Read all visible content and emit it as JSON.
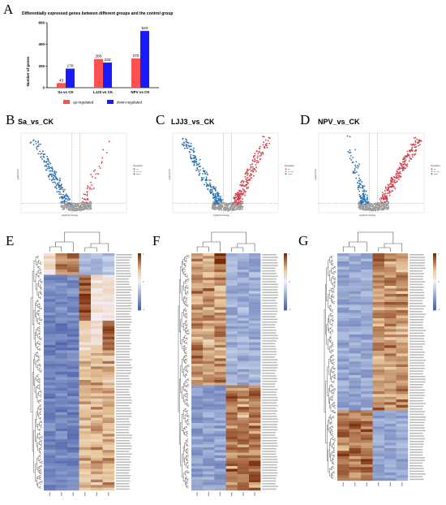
{
  "panels": {
    "A": "A",
    "B": "B",
    "C": "C",
    "D": "D",
    "E": "E",
    "F": "F",
    "G": "G"
  },
  "colors": {
    "up": "#ff5050",
    "down": "#1a1aff",
    "volcano_up": "#d0404a",
    "volcano_down": "#2a6fb0",
    "volcano_ns": "#9a9a9a",
    "heat_high": "#7a2a08",
    "heat_mid_high": "#e8c8a0",
    "heat_mid": "#f5eef5",
    "heat_low": "#4a60a8",
    "tree": "#555555",
    "pink_cell": "#f7d0e8"
  },
  "chart_data": [
    {
      "type": "bar",
      "title": "Differentially expressed  genes between different groups and the control group",
      "ylabel": "Number of genes",
      "ylim": [
        0,
        600
      ],
      "yticks": [
        "0",
        "200",
        "400",
        "600"
      ],
      "categories": [
        "Sa vs CK",
        "LJJ3 vs CK",
        "NPV vs CK"
      ],
      "series": [
        {
          "name": "up-regulated",
          "values": [
            43,
            265,
            270
          ]
        },
        {
          "name": "down-regulated",
          "values": [
            176,
            232,
            524
          ]
        }
      ],
      "value_labels": {
        "up-regulated": [
          "43",
          "265",
          "270"
        ],
        "down-regulated": [
          "176",
          "232",
          "524"
        ]
      },
      "legend": "bottom"
    },
    {
      "type": "scatter",
      "title": "Sa_vs_CK",
      "xlabel": "log2(Fold change)",
      "ylabel": "-log10(FDR)",
      "legend_title": "Regulation",
      "legend_items": [
        "up",
        "no_sig",
        "down"
      ]
    },
    {
      "type": "scatter",
      "title": "LJJ3_vs_CK",
      "xlabel": "log2(Fold change)",
      "ylabel": "-log10(FDR)",
      "legend_title": "Regulation",
      "legend_items": [
        "up",
        "no_sig",
        "down"
      ]
    },
    {
      "type": "scatter",
      "title": "NPV_vs_CK",
      "xlabel": "log2(Fold change)",
      "ylabel": "-log10(FDR)",
      "legend_title": "Regulation",
      "legend_items": [
        "up",
        "no_sig",
        "down"
      ]
    },
    {
      "type": "heatmap",
      "panel": "E",
      "colorbar_ticks": [
        "1",
        "0",
        "-1"
      ]
    },
    {
      "type": "heatmap",
      "panel": "F",
      "colorbar_ticks": [
        "1",
        "0",
        "-1"
      ]
    },
    {
      "type": "heatmap",
      "panel": "G",
      "colorbar_ticks": [
        "1",
        "0",
        "-1"
      ]
    }
  ]
}
